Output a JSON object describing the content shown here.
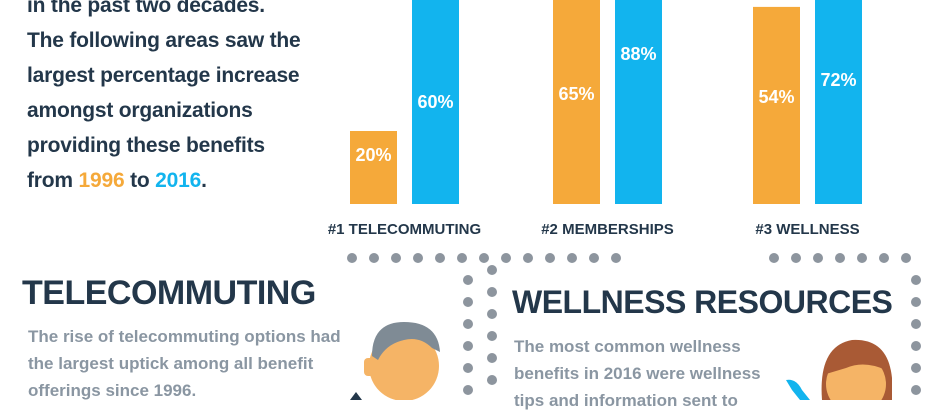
{
  "intro": {
    "line1": "in the past two decades.",
    "line2": "The following areas saw the",
    "line3": "largest percentage increase",
    "line4": "amongst organizations",
    "line5": "providing these benefits",
    "from_word": "from",
    "year_start": "1996",
    "to_word": "to",
    "year_end": "2016",
    "period": "."
  },
  "chart_data": {
    "type": "bar",
    "categories": [
      "#1 TELECOMMUTING",
      "#2 MEMBERSHIPS",
      "#3 WELLNESS"
    ],
    "series": [
      {
        "name": "1996",
        "values": [
          20,
          65,
          54
        ],
        "labels": [
          "20%",
          "65%",
          "54%"
        ]
      },
      {
        "name": "2016",
        "values": [
          60,
          88,
          72
        ],
        "labels": [
          "60%",
          "88%",
          "72%"
        ]
      }
    ],
    "ylim": [
      0,
      100
    ],
    "colors": {
      "1996": "#f5a93a",
      "2016": "#12b4ee"
    },
    "grid": false
  },
  "telecommuting": {
    "title": "TELECOMMUTING",
    "text": "The rise of telecommuting options had the largest uptick among all benefit offerings since 1996."
  },
  "wellness": {
    "title": "WELLNESS RESOURCES",
    "text": "The most common wellness benefits in 2016 were wellness tips and information sent to"
  },
  "colors": {
    "text_dark": "#23374a",
    "text_muted": "#8a96a2",
    "dot": "#8d959e",
    "skin": "#f5b466",
    "hair_gray": "#7f8b95",
    "hair_brown": "#a95a35",
    "shirt_blue": "#12b4ee"
  },
  "icons": [
    "man-avatar-icon",
    "woman-avatar-icon"
  ]
}
